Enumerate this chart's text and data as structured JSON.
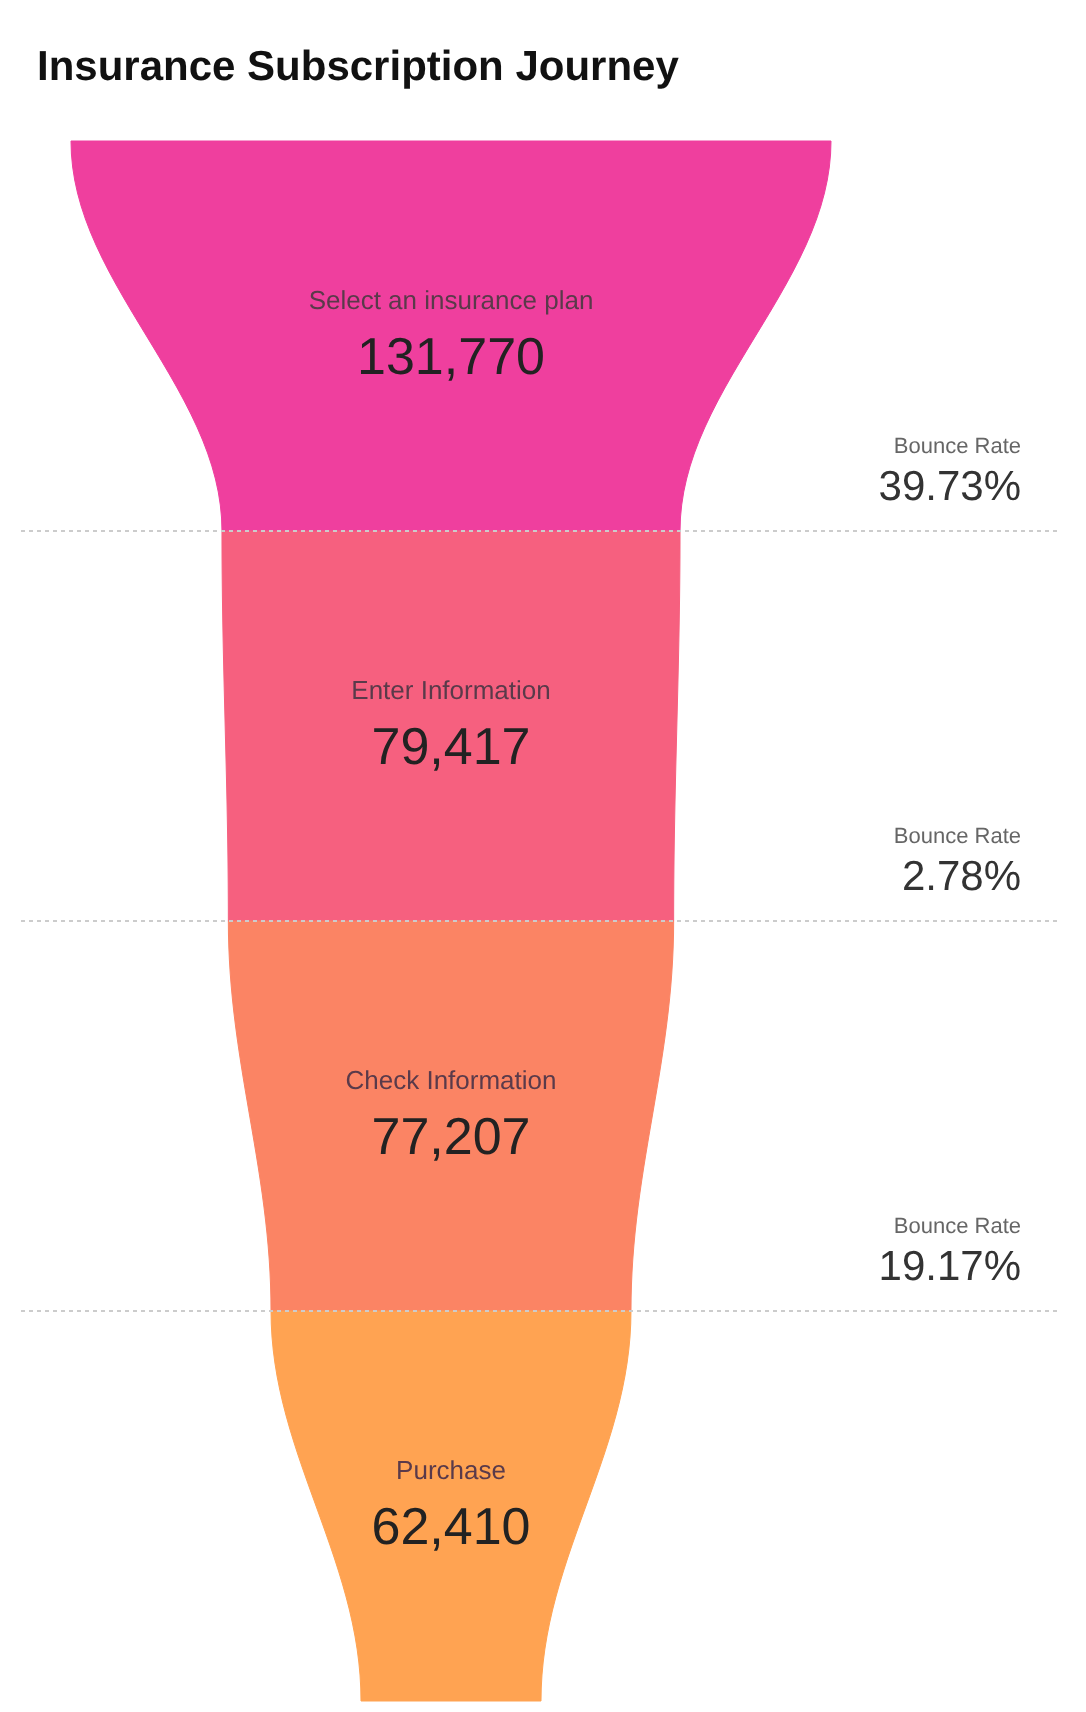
{
  "chart_data": {
    "type": "other",
    "title": "Insurance Subscription Journey",
    "categories": [
      "Select an insurance plan",
      "Enter Information",
      "Check Information",
      "Purchase"
    ],
    "values": [
      131770,
      79417,
      77207,
      62410
    ],
    "value_labels": [
      "131,770",
      "79,417",
      "77,207",
      "62,410"
    ],
    "colors": [
      "#ef3f9e",
      "#f6607f",
      "#fb8464",
      "#ffa352"
    ],
    "annotations": [
      "Bounce Rate",
      "39.73%",
      "Bounce Rate",
      "2.78%",
      "Bounce Rate",
      "19.17%"
    ]
  }
}
